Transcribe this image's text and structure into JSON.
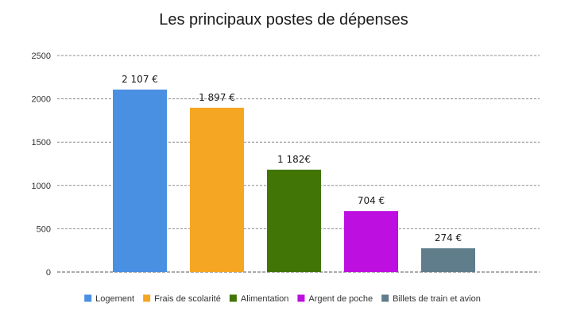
{
  "chart_data": {
    "type": "bar",
    "title": "Les principaux postes de dépenses",
    "xlabel": "",
    "ylabel": "",
    "ylim": [
      0,
      2500
    ],
    "yticks": [
      0,
      500,
      1000,
      1500,
      2000,
      2500
    ],
    "grid": true,
    "legend_position": "bottom",
    "categories": [
      "Logement",
      "Frais de scolarité",
      "Alimentation",
      "Argent de poche",
      "Billets de train et avion"
    ],
    "values": [
      2107,
      1897,
      1182,
      704,
      274
    ],
    "data_labels": [
      "2 107 €",
      "1 897 €",
      "1 182€",
      "704 €",
      "274 €"
    ],
    "colors": [
      "#4a90e2",
      "#f5a623",
      "#417505",
      "#bd10e0",
      "#607d8b"
    ]
  }
}
